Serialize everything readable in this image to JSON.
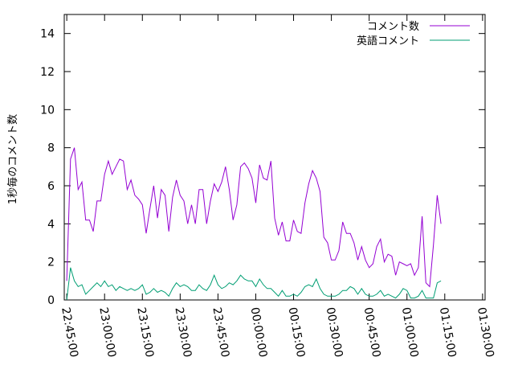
{
  "chart_data": {
    "type": "line",
    "ylabel": "1秒毎のコメント数",
    "xlabel": "",
    "ylim": [
      0,
      15
    ],
    "y_ticks": [
      0,
      2,
      4,
      6,
      8,
      10,
      12,
      14
    ],
    "y_tick_labels": [
      "0",
      "2",
      "4",
      "6",
      "8",
      "10",
      "12",
      "14"
    ],
    "x_ticks": [
      "22:45:00",
      "23:00:00",
      "23:15:00",
      "23:30:00",
      "23:45:00",
      "00:00:00",
      "00:15:00",
      "00:30:00",
      "00:45:00",
      "01:00:00",
      "01:15:00",
      "01:30:00"
    ],
    "x_tick_minutes": [
      0,
      15,
      30,
      45,
      60,
      75,
      90,
      105,
      120,
      135,
      150,
      165
    ],
    "xlim_minutes": [
      -1,
      166
    ],
    "x_unit": "minutes after 22:45:00",
    "grid": false,
    "legend_position": "top-right",
    "series": [
      {
        "name": "コメント数",
        "color": "#9400d3",
        "values": [
          1.0,
          7.4,
          8.0,
          5.8,
          6.2,
          4.2,
          4.2,
          3.6,
          5.2,
          5.2,
          6.6,
          7.3,
          6.6,
          7.0,
          7.4,
          7.3,
          5.8,
          6.3,
          5.5,
          5.3,
          5.0,
          3.5,
          4.8,
          6.0,
          4.3,
          5.8,
          5.5,
          3.6,
          5.4,
          6.3,
          5.5,
          5.2,
          4.0,
          5.0,
          4.0,
          5.8,
          5.8,
          4.0,
          5.2,
          6.1,
          5.7,
          6.2,
          7.0,
          5.8,
          4.2,
          5.0,
          7.0,
          7.2,
          6.9,
          6.4,
          5.1,
          7.1,
          6.4,
          6.3,
          7.3,
          4.3,
          3.4,
          4.1,
          3.1,
          3.1,
          4.2,
          3.6,
          3.5,
          5.1,
          6.1,
          6.8,
          6.4,
          5.7,
          3.3,
          3.0,
          2.1,
          2.1,
          2.6,
          4.1,
          3.5,
          3.5,
          3.0,
          2.1,
          2.8,
          2.1,
          1.7,
          1.9,
          2.8,
          3.2,
          2.0,
          2.4,
          2.3,
          1.3,
          2.0,
          1.9,
          1.8,
          1.9,
          1.3,
          1.7,
          4.4,
          0.9,
          0.7,
          2.9,
          5.5,
          4.0
        ],
        "x_start": 0,
        "x_step": 1.5
      },
      {
        "name": "英語コメント",
        "color": "#009e73",
        "values": [
          0.0,
          1.7,
          1.0,
          0.7,
          0.8,
          0.3,
          0.5,
          0.7,
          0.9,
          0.7,
          1.0,
          0.7,
          0.8,
          0.5,
          0.7,
          0.6,
          0.5,
          0.6,
          0.5,
          0.6,
          0.8,
          0.3,
          0.4,
          0.6,
          0.4,
          0.5,
          0.4,
          0.2,
          0.6,
          0.9,
          0.7,
          0.8,
          0.7,
          0.5,
          0.5,
          0.8,
          0.6,
          0.5,
          0.8,
          1.3,
          0.8,
          0.6,
          0.7,
          0.9,
          0.8,
          1.0,
          1.3,
          1.1,
          1.0,
          1.0,
          0.7,
          1.1,
          0.8,
          0.6,
          0.6,
          0.4,
          0.2,
          0.5,
          0.2,
          0.2,
          0.3,
          0.2,
          0.4,
          0.7,
          0.8,
          0.7,
          1.1,
          0.6,
          0.3,
          0.2,
          0.2,
          0.2,
          0.3,
          0.5,
          0.5,
          0.7,
          0.6,
          0.3,
          0.6,
          0.3,
          0.2,
          0.2,
          0.3,
          0.5,
          0.2,
          0.3,
          0.2,
          0.1,
          0.3,
          0.6,
          0.5,
          0.1,
          0.1,
          0.2,
          0.5,
          0.1,
          0.1,
          0.1,
          0.9,
          1.0
        ],
        "x_start": 0,
        "x_step": 1.5
      }
    ]
  }
}
